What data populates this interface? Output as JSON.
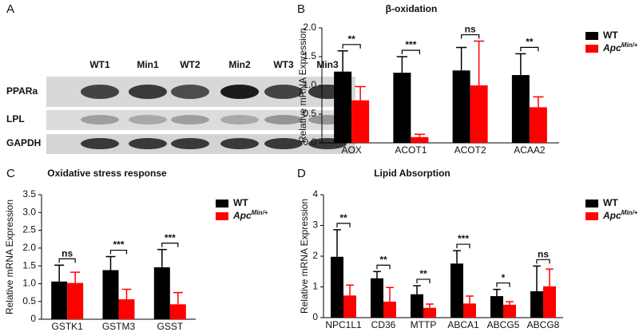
{
  "panel_labels": [
    "A",
    "B",
    "C",
    "D"
  ],
  "blot": {
    "lanes": [
      "WT1",
      "Min1",
      "WT2",
      "Min2",
      "WT3",
      "Min3"
    ],
    "rows": [
      "PPARa",
      "LPL",
      "GAPDH"
    ]
  },
  "chart_data": [
    {
      "type": "bar",
      "title": "β-oxidation",
      "y_label": "Relative mRNA Expression",
      "categories": [
        "AOX",
        "ACOT1",
        "ACOT2",
        "ACAA2"
      ],
      "series": [
        {
          "name": "WT",
          "color": "#000000",
          "values": [
            1.24,
            1.22,
            1.26,
            1.18
          ],
          "errors": [
            0.36,
            0.28,
            0.4,
            0.37
          ]
        },
        {
          "name": "Apc",
          "name_superscript": "Min/+",
          "color": "#ff0000",
          "values": [
            0.74,
            0.1,
            1.0,
            0.62
          ],
          "errors": [
            0.24,
            0.05,
            0.77,
            0.18
          ]
        }
      ],
      "significance": [
        "**",
        "***",
        "ns",
        "**"
      ],
      "ylim": [
        0,
        2.0
      ],
      "yticks": [
        {
          "value": 0,
          "label": "0.0"
        },
        0.5,
        {
          "value": 1,
          "label": "1.0"
        },
        1.5,
        {
          "value": 2,
          "label": "2.0"
        }
      ],
      "legend": "right"
    },
    {
      "type": "bar",
      "title": "Oxidative stress response",
      "y_label": "Relative mRNA Expression",
      "categories": [
        "GSTK1",
        "GSTM3",
        "GSST"
      ],
      "series": [
        {
          "name": "WT",
          "color": "#000000",
          "values": [
            1.06,
            1.38,
            1.46
          ],
          "errors": [
            0.46,
            0.38,
            0.5
          ]
        },
        {
          "name": "Apc",
          "name_superscript": "Min/+",
          "color": "#ff0000",
          "values": [
            1.02,
            0.56,
            0.42
          ],
          "errors": [
            0.3,
            0.28,
            0.33
          ]
        }
      ],
      "significance": [
        "ns",
        "***",
        "***"
      ],
      "ylim": [
        0,
        3.5
      ],
      "yticks": [
        0,
        0.5,
        {
          "value": 1,
          "label": "1.0"
        },
        1.5,
        {
          "value": 2,
          "label": "2.0"
        },
        2.5,
        {
          "value": 3,
          "label": "3.0"
        },
        3.5
      ],
      "legend": "right"
    },
    {
      "type": "bar",
      "title": "Lipid Absorption",
      "y_label": "Relative mRNA Expression",
      "categories": [
        "NPC1L1",
        "CD36",
        "MTTP",
        "ABCA1",
        "ABCG5",
        "ABCG8"
      ],
      "series": [
        {
          "name": "WT",
          "color": "#000000",
          "values": [
            1.98,
            1.28,
            0.76,
            1.76,
            0.7,
            0.86
          ],
          "errors": [
            0.88,
            0.22,
            0.28,
            0.42,
            0.22,
            0.82
          ]
        },
        {
          "name": "Apc",
          "name_superscript": "Min/+",
          "color": "#ff0000",
          "values": [
            0.72,
            0.52,
            0.32,
            0.46,
            0.42,
            1.02
          ],
          "errors": [
            0.34,
            0.46,
            0.12,
            0.24,
            0.1,
            0.56
          ]
        }
      ],
      "significance": [
        "**",
        "**",
        "**",
        "***",
        "*",
        "ns"
      ],
      "ylim": [
        0,
        4
      ],
      "yticks": [
        0,
        1,
        2,
        3,
        4
      ],
      "legend": "right"
    }
  ]
}
